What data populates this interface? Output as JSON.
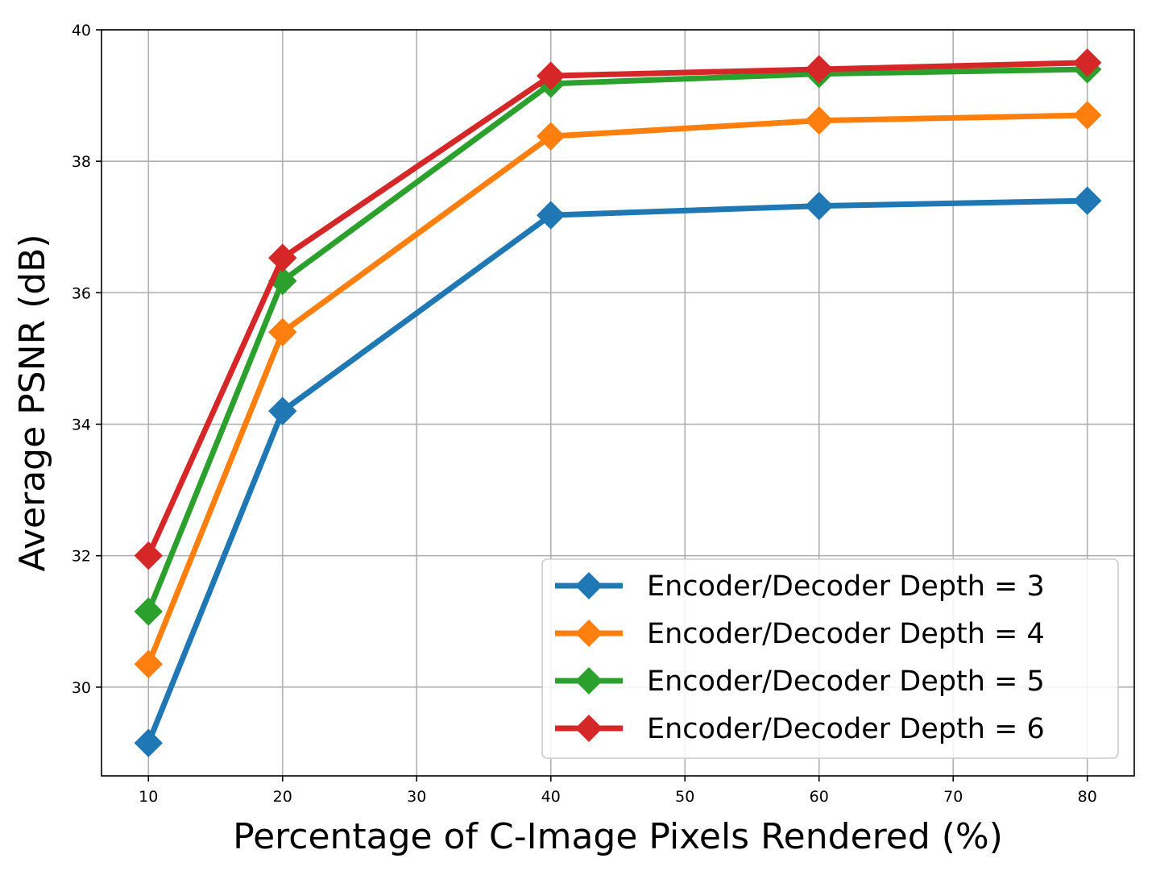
{
  "chart_data": {
    "type": "line",
    "title": "",
    "xlabel": "Percentage of C-Image Pixels Rendered (%)",
    "ylabel": "Average PSNR (dB)",
    "xlim": [
      6.5,
      83.5
    ],
    "ylim": [
      28.65,
      40
    ],
    "x_ticks": [
      10,
      20,
      30,
      40,
      50,
      60,
      70,
      80
    ],
    "y_ticks": [
      30,
      32,
      34,
      36,
      38,
      40
    ],
    "grid": true,
    "legend_position": "bottom-right",
    "marker": "diamond",
    "x": [
      10,
      20,
      40,
      60,
      80
    ],
    "series": [
      {
        "name": "Encoder/Decoder Depth = 3",
        "color": "#1f77b4",
        "values": [
          29.15,
          34.2,
          37.18,
          37.32,
          37.4
        ]
      },
      {
        "name": "Encoder/Decoder Depth = 4",
        "color": "#ff7f0e",
        "values": [
          30.35,
          35.4,
          38.38,
          38.62,
          38.7
        ]
      },
      {
        "name": "Encoder/Decoder Depth = 5",
        "color": "#2ca02c",
        "values": [
          31.15,
          36.18,
          39.18,
          39.33,
          39.4
        ]
      },
      {
        "name": "Encoder/Decoder Depth = 6",
        "color": "#d62728",
        "values": [
          32.0,
          36.53,
          39.3,
          39.4,
          39.5
        ]
      }
    ]
  }
}
